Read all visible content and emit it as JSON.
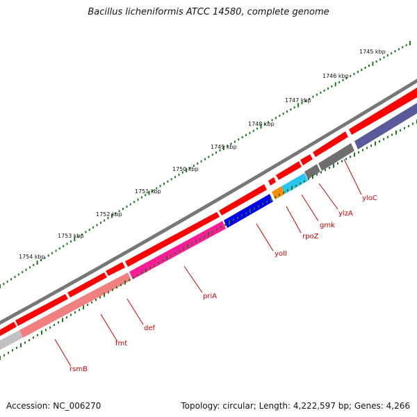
{
  "title": "Bacillus licheniformis ATCC 14580, complete genome",
  "footer": {
    "accession": "Accession: NC_006270",
    "summary": "Topology: circular; Length: 4,222,597 bp; Genes: 4,266"
  },
  "scale_labels": [
    "1745 kbp",
    "1746 kbp",
    "1747 kbp",
    "1748 kbp",
    "1749 kbp",
    "1750 kbp",
    "1751 kbp",
    "1752 kbp",
    "1753 kbp",
    "1754 kbp"
  ],
  "gene_labels": [
    "yloC",
    "ylzA",
    "gmk",
    "rpoZ",
    "yolI",
    "priA",
    "def",
    "fmt",
    "rsmB"
  ],
  "colors": {
    "backbone": "#777777",
    "forward_strand": "#ff0000",
    "ticks": "#1a7a1a",
    "label": "#cc0000",
    "yloC": "#5a5a9a",
    "ylzA": "#6e6e6e",
    "gmk": "#6e6e6e",
    "rpoZ": "#29c4f0",
    "small_orange": "#ff8c00",
    "yolI": "#0000ee",
    "priA": "#ff1a99",
    "def": "#f08080",
    "fmt": "#f08080",
    "rsmB": "#c0c0c0"
  }
}
